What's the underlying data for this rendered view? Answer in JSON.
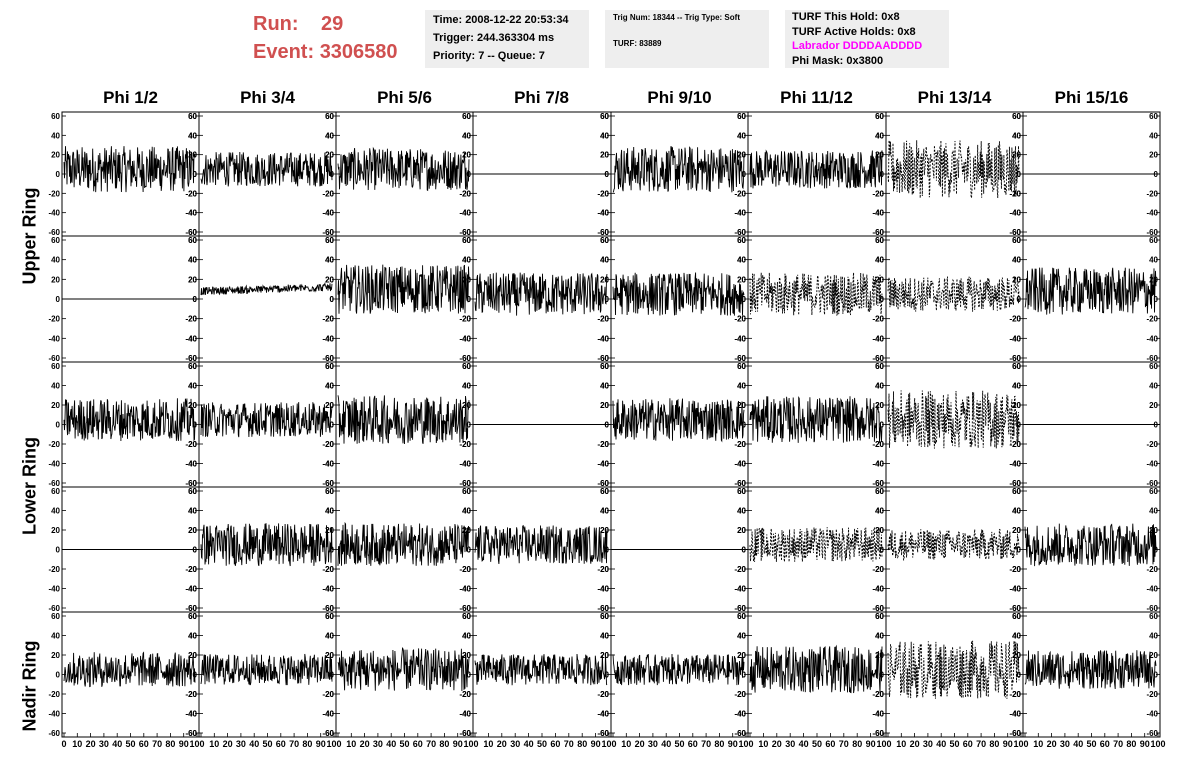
{
  "header": {
    "run_label": "Run:",
    "run_value": "29",
    "event_label": "Event:",
    "event_value": "3306580"
  },
  "time_box": {
    "time": "Time: 2008-12-22 20:53:34",
    "trigger": "Trigger: 244.363304 ms",
    "priority": "Priority: 7 -- Queue: 7"
  },
  "trig_box": {
    "trig": "Trig Num: 18344 -- Trig Type: Soft",
    "turf": "TURF: 83889"
  },
  "turf_box": {
    "this_hold": "TURF This Hold: 0x8",
    "active_holds": "TURF Active Holds: 0x8",
    "labrador": "Labrador DDDDAADDDD",
    "phi_mask": "Phi Mask: 0x3800",
    "labrador_color": "#ff00ff"
  },
  "columns": [
    "Phi 1/2",
    "Phi 3/4",
    "Phi 5/6",
    "Phi 7/8",
    "Phi 9/10",
    "Phi 11/12",
    "Phi 13/14",
    "Phi 15/16"
  ],
  "row_labels": [
    {
      "label": "Upper Ring"
    },
    {
      "label": "Lower Ring"
    },
    {
      "label": "Nadir Ring"
    }
  ],
  "chart_data": {
    "type": "line",
    "ylim": [
      -60,
      60
    ],
    "xlim": [
      0,
      100
    ],
    "y_tick_labels": [
      "60",
      "40",
      "20",
      "0",
      "-20",
      "-40",
      "-60"
    ],
    "x_tick_labels": [
      "0",
      "10",
      "20",
      "30",
      "40",
      "50",
      "60",
      "70",
      "80",
      "90",
      "100"
    ],
    "grid": false,
    "panels": [
      [
        "noisy",
        "noisy",
        "noisy",
        "flat",
        "noisy",
        "noisy",
        "dashed",
        "flat"
      ],
      [
        "flat",
        "small",
        "noisy",
        "noisy",
        "noisy",
        "dashed",
        "dashed",
        "noisy"
      ],
      [
        "noisy",
        "noisy",
        "noisy",
        "flat",
        "noisy",
        "noisy",
        "dashed",
        "flat"
      ],
      [
        "flat",
        "noisy",
        "noisy",
        "noisy",
        "flat",
        "dashed",
        "dashed",
        "noisy"
      ],
      [
        "noisy",
        "noisy",
        "noisy",
        "noisy",
        "noisy",
        "noisy",
        "dashed",
        "noisy"
      ]
    ],
    "amplitudes": [
      [
        24,
        18,
        22,
        0,
        24,
        20,
        30,
        0
      ],
      [
        0,
        4,
        25,
        22,
        22,
        22,
        18,
        24
      ],
      [
        22,
        18,
        25,
        0,
        22,
        24,
        30,
        0
      ],
      [
        0,
        22,
        22,
        20,
        0,
        18,
        16,
        22
      ],
      [
        18,
        16,
        22,
        16,
        16,
        24,
        30,
        20
      ]
    ],
    "offsets": [
      [
        5,
        5,
        5,
        0,
        5,
        5,
        5,
        0
      ],
      [
        0,
        8,
        10,
        5,
        5,
        5,
        5,
        8
      ],
      [
        5,
        5,
        5,
        0,
        5,
        5,
        5,
        0
      ],
      [
        0,
        5,
        5,
        5,
        0,
        5,
        5,
        5
      ],
      [
        5,
        5,
        5,
        5,
        5,
        5,
        5,
        5
      ]
    ]
  }
}
